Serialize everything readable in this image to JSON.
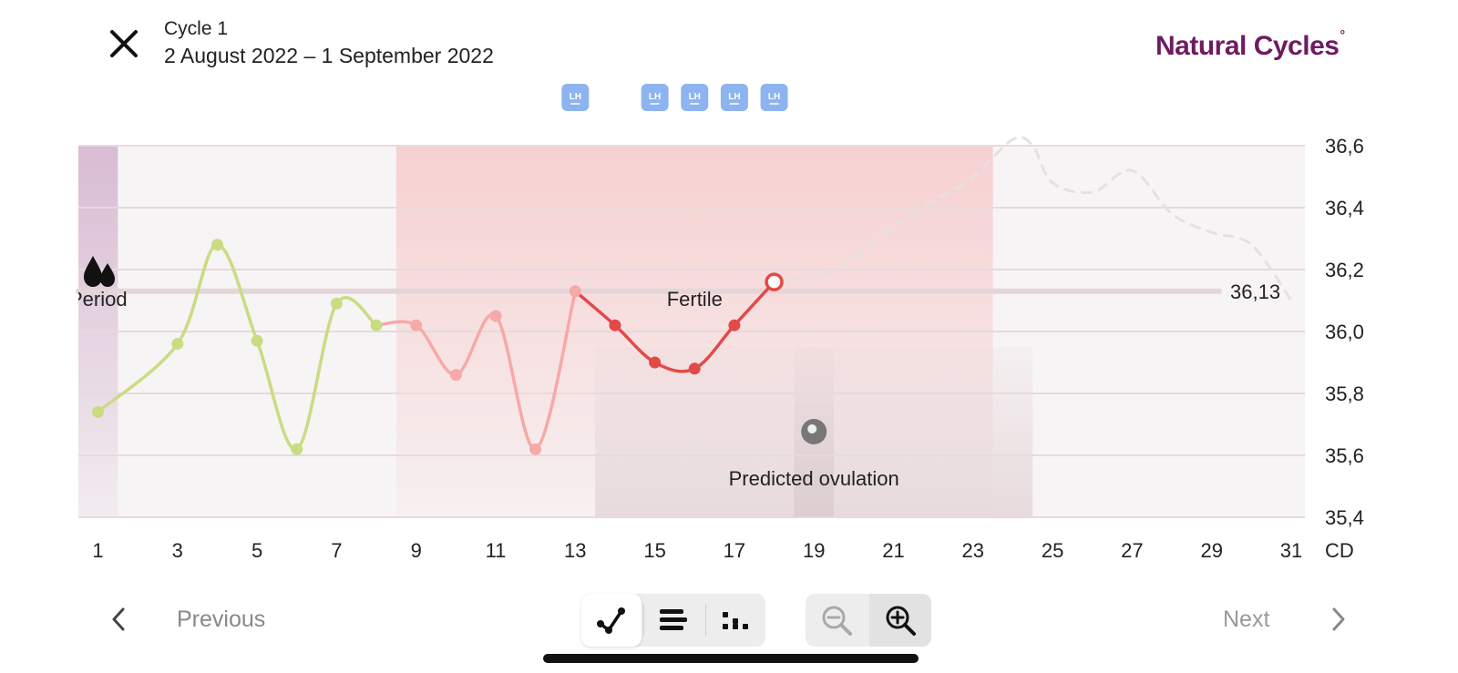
{
  "header": {
    "cycle_title": "Cycle 1",
    "cycle_dates": "2 August 2022 – 1 September 2022",
    "brand_name": "Natural Cycles",
    "brand_mark": "°",
    "close_icon": "close-icon"
  },
  "chart_data": {
    "type": "line",
    "xlabel": "CD",
    "ylabel": "",
    "x_range": [
      1,
      31
    ],
    "ylim": [
      35.4,
      36.6
    ],
    "y_ticks": [
      "36,6",
      "36,4",
      "36,2",
      "36,0",
      "35,8",
      "35,6",
      "35,4"
    ],
    "x_ticks": [
      "1",
      "3",
      "5",
      "7",
      "9",
      "11",
      "13",
      "15",
      "17",
      "19",
      "21",
      "23",
      "25",
      "27",
      "29",
      "31"
    ],
    "x_unit_label": "CD",
    "coverline": {
      "value": 36.13,
      "label": "36,13"
    },
    "series": [
      {
        "status": "infertile",
        "color": "#c9dc82",
        "points": [
          [
            1,
            35.74
          ],
          [
            3,
            35.96
          ],
          [
            4,
            36.28
          ],
          [
            5,
            35.97
          ],
          [
            6,
            35.62
          ],
          [
            7,
            36.09
          ],
          [
            8,
            36.02
          ]
        ]
      },
      {
        "status": "fertile",
        "color": "#f6a9a7",
        "points": [
          [
            8,
            36.02
          ],
          [
            9,
            36.02
          ],
          [
            10,
            35.86
          ],
          [
            11,
            36.05
          ],
          [
            12,
            35.62
          ],
          [
            13,
            36.13
          ]
        ]
      },
      {
        "status": "fertile-recent",
        "color": "#e24a4a",
        "points": [
          [
            13,
            36.13
          ],
          [
            14,
            36.02
          ],
          [
            15,
            35.9
          ],
          [
            16,
            35.88
          ],
          [
            17,
            36.02
          ],
          [
            18,
            36.16
          ]
        ]
      },
      {
        "status": "prediction",
        "dashed": true,
        "color": "#e6e0e0",
        "points": [
          [
            18,
            36.16
          ],
          [
            19.5,
            36.2
          ],
          [
            21,
            36.34
          ],
          [
            22,
            36.42
          ],
          [
            23,
            36.5
          ],
          [
            24,
            36.62
          ],
          [
            24.5,
            36.6
          ],
          [
            25,
            36.48
          ],
          [
            26,
            36.45
          ],
          [
            27,
            36.52
          ],
          [
            28,
            36.38
          ],
          [
            29,
            36.32
          ],
          [
            30,
            36.28
          ],
          [
            31,
            36.1
          ]
        ]
      }
    ],
    "open_point": [
      18,
      36.16
    ],
    "bands": [
      {
        "type": "period",
        "from": 0.5,
        "to": 1.5,
        "label": "Period",
        "color": "#dcc5d8"
      },
      {
        "type": "fertile",
        "from": 8.5,
        "to": 23.5,
        "label": "Fertile",
        "color": "#f9dcdc"
      },
      {
        "type": "ovulation-window",
        "from": 13.5,
        "to": 24.5,
        "color": "#eadfe0"
      },
      {
        "type": "ovulation-day",
        "from": 18.5,
        "to": 19.5,
        "color": "#dcd0d2"
      }
    ],
    "annotations": [
      {
        "label": "Predicted ovulation",
        "x": 19,
        "icon": "ovulation-icon"
      },
      {
        "label": "Period",
        "x": 1,
        "icon": "period-drops-icon"
      },
      {
        "label": "Fertile",
        "x": 16
      }
    ],
    "lh_test_days": [
      13,
      15,
      16,
      17,
      18
    ],
    "lh_label": "LH",
    "lh_color": "#8db4ef"
  },
  "footer": {
    "previous_label": "Previous",
    "next_label": "Next",
    "view_modes": [
      "line-chart-icon",
      "bar-list-icon",
      "dot-grid-icon"
    ],
    "zoom": [
      "zoom-out-icon",
      "zoom-in-icon"
    ]
  }
}
